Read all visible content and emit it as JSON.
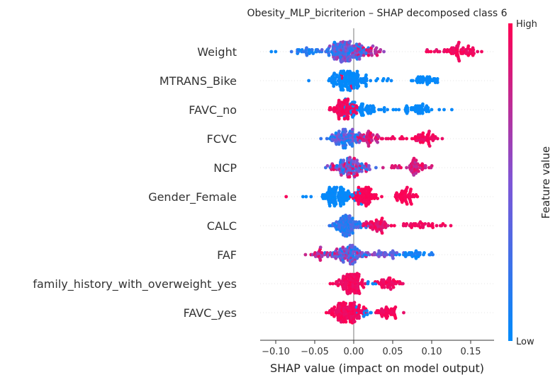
{
  "chart_data": {
    "type": "scatter",
    "subtype": "shap-beeswarm",
    "title": "Obesity_MLP_bicriterion – SHAP decomposed class 6",
    "xlabel": "SHAP value (impact on model output)",
    "xlim": [
      -0.12,
      0.18
    ],
    "xticks": [
      -0.1,
      -0.05,
      0.0,
      0.05,
      0.1,
      0.15
    ],
    "xtick_labels": [
      "−0.10",
      "−0.05",
      "0.00",
      "0.05",
      "0.10",
      "0.15"
    ],
    "features": [
      {
        "name": "Weight",
        "clusters": [
          {
            "c": -0.01,
            "s": 0.012,
            "n": 150,
            "fv": [
              0.0,
              0.7
            ]
          },
          {
            "c": -0.055,
            "s": 0.012,
            "n": 30,
            "fv": [
              0.0,
              0.25
            ]
          },
          {
            "c": 0.02,
            "s": 0.01,
            "n": 30,
            "fv": [
              0.5,
              1.0
            ]
          },
          {
            "c": 0.14,
            "s": 0.012,
            "n": 60,
            "fv": [
              0.9,
              1.0
            ]
          },
          {
            "c": 0.1,
            "s": 0.006,
            "n": 8,
            "fv": [
              0.85,
              1.0
            ]
          },
          {
            "c": -0.105,
            "s": 0.004,
            "n": 2,
            "fv": [
              0.0,
              0.05
            ]
          }
        ]
      },
      {
        "name": "MTRANS_Bike",
        "clusters": [
          {
            "c": -0.01,
            "s": 0.013,
            "n": 130,
            "fv": [
              0.0,
              0.05
            ]
          },
          {
            "c": 0.095,
            "s": 0.009,
            "n": 35,
            "fv": [
              0.0,
              0.05
            ]
          },
          {
            "c": 0.04,
            "s": 0.008,
            "n": 6,
            "fv": [
              0.0,
              0.05
            ]
          },
          {
            "c": -0.012,
            "s": 0.004,
            "n": 4,
            "fv": [
              0.9,
              1.0
            ]
          }
        ]
      },
      {
        "name": "FAVC_no",
        "clusters": [
          {
            "c": -0.01,
            "s": 0.008,
            "n": 90,
            "fv": [
              0.9,
              1.0
            ]
          },
          {
            "c": 0.015,
            "s": 0.012,
            "n": 50,
            "fv": [
              0.0,
              0.05
            ]
          },
          {
            "c": 0.085,
            "s": 0.012,
            "n": 45,
            "fv": [
              0.0,
              0.05
            ]
          },
          {
            "c": 0.045,
            "s": 0.006,
            "n": 5,
            "fv": [
              0.0,
              0.05
            ]
          }
        ]
      },
      {
        "name": "FCVC",
        "clusters": [
          {
            "c": -0.012,
            "s": 0.01,
            "n": 90,
            "fv": [
              0.0,
              0.6
            ]
          },
          {
            "c": 0.02,
            "s": 0.01,
            "n": 40,
            "fv": [
              0.7,
              1.0
            ]
          },
          {
            "c": 0.085,
            "s": 0.01,
            "n": 50,
            "fv": [
              0.9,
              1.0
            ]
          },
          {
            "c": 0.05,
            "s": 0.006,
            "n": 6,
            "fv": [
              0.9,
              1.0
            ]
          }
        ]
      },
      {
        "name": "NCP",
        "clusters": [
          {
            "c": -0.005,
            "s": 0.012,
            "n": 120,
            "fv": [
              0.0,
              1.0
            ]
          },
          {
            "c": 0.08,
            "s": 0.009,
            "n": 45,
            "fv": [
              0.7,
              1.0
            ]
          },
          {
            "c": 0.045,
            "s": 0.006,
            "n": 6,
            "fv": [
              0.8,
              1.0
            ]
          }
        ]
      },
      {
        "name": "Gender_Female",
        "clusters": [
          {
            "c": -0.02,
            "s": 0.012,
            "n": 100,
            "fv": [
              0.0,
              0.05
            ]
          },
          {
            "c": 0.015,
            "s": 0.008,
            "n": 70,
            "fv": [
              0.95,
              1.0
            ]
          },
          {
            "c": 0.065,
            "s": 0.007,
            "n": 50,
            "fv": [
              0.95,
              1.0
            ]
          },
          {
            "c": -0.06,
            "s": 0.005,
            "n": 3,
            "fv": [
              0.0,
              0.05
            ]
          },
          {
            "c": -0.083,
            "s": 0.002,
            "n": 1,
            "fv": [
              0.95,
              1.0
            ]
          }
        ]
      },
      {
        "name": "CALC",
        "clusters": [
          {
            "c": -0.008,
            "s": 0.01,
            "n": 110,
            "fv": [
              0.0,
              0.4
            ]
          },
          {
            "c": 0.03,
            "s": 0.012,
            "n": 50,
            "fv": [
              0.8,
              1.0
            ]
          },
          {
            "c": 0.085,
            "s": 0.014,
            "n": 30,
            "fv": [
              0.9,
              1.0
            ]
          },
          {
            "c": 0.12,
            "s": 0.004,
            "n": 3,
            "fv": [
              0.9,
              1.0
            ]
          }
        ]
      },
      {
        "name": "FAF",
        "clusters": [
          {
            "c": -0.005,
            "s": 0.012,
            "n": 100,
            "fv": [
              0.0,
              0.8
            ]
          },
          {
            "c": -0.045,
            "s": 0.008,
            "n": 25,
            "fv": [
              0.6,
              1.0
            ]
          },
          {
            "c": 0.04,
            "s": 0.012,
            "n": 25,
            "fv": [
              0.3,
              0.6
            ]
          },
          {
            "c": 0.08,
            "s": 0.012,
            "n": 30,
            "fv": [
              0.0,
              0.15
            ]
          }
        ]
      },
      {
        "name": "family_history_with_overweight_yes",
        "clusters": [
          {
            "c": -0.005,
            "s": 0.01,
            "n": 110,
            "fv": [
              0.9,
              1.0
            ]
          },
          {
            "c": 0.045,
            "s": 0.008,
            "n": 40,
            "fv": [
              0.9,
              1.0
            ]
          },
          {
            "c": 0.025,
            "s": 0.004,
            "n": 5,
            "fv": [
              0.0,
              0.1
            ]
          }
        ]
      },
      {
        "name": "FAVC_yes",
        "clusters": [
          {
            "c": -0.008,
            "s": 0.012,
            "n": 130,
            "fv": [
              0.9,
              1.0
            ]
          },
          {
            "c": 0.045,
            "s": 0.008,
            "n": 40,
            "fv": [
              0.9,
              1.0
            ]
          },
          {
            "c": 0.015,
            "s": 0.005,
            "n": 10,
            "fv": [
              0.0,
              0.1
            ]
          }
        ]
      }
    ],
    "colorbar": {
      "label": "Feature value",
      "high": "High",
      "low": "Low",
      "low_color": "#008bfb",
      "mid_color": "#7e56d6",
      "high_color": "#ff0052"
    },
    "zero_line_color": "#999999"
  }
}
